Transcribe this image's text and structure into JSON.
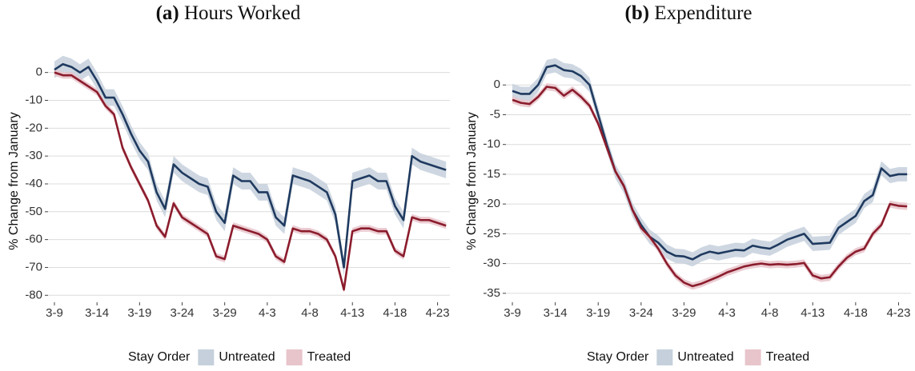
{
  "chart_data": [
    {
      "type": "line",
      "panel_label": "(a)",
      "title": "Hours Worked",
      "y_label": "% Change from January",
      "legend_title": "Stay Order",
      "categories": [
        "3-9",
        null,
        null,
        null,
        null,
        "3-14",
        null,
        null,
        null,
        null,
        "3-19",
        null,
        null,
        null,
        null,
        "3-24",
        null,
        null,
        null,
        null,
        "3-29",
        null,
        null,
        null,
        null,
        "4-3",
        null,
        null,
        null,
        null,
        "4-8",
        null,
        null,
        null,
        null,
        "4-13",
        null,
        null,
        null,
        null,
        "4-18",
        null,
        null,
        null,
        null,
        "4-23",
        null
      ],
      "ylim": [
        -82.5,
        4.5
      ],
      "yticks": [
        0,
        -10,
        -20,
        -30,
        -40,
        -50,
        -60,
        -70,
        -80
      ],
      "grid": true,
      "series": [
        {
          "name": "Untreated",
          "color": "#1f3a5f",
          "band_color": "#c5d0dc",
          "band": 3,
          "values": [
            1,
            3,
            2,
            0,
            2,
            -3,
            -9,
            -9,
            -15,
            -22,
            -28,
            -32,
            -43,
            -49,
            -33,
            -36,
            -38,
            -40,
            -41,
            -50,
            -54,
            -37,
            -39,
            -39,
            -43,
            -43,
            -52,
            -55,
            -37,
            -38,
            -39,
            -41,
            -43,
            -51,
            -70,
            -39,
            -38,
            -37,
            -39,
            -39,
            -48,
            -53,
            -30,
            -32,
            -33,
            -34,
            -35
          ]
        },
        {
          "name": "Treated",
          "color": "#8b1c2c",
          "band_color": "#e8c4cb",
          "band": 1.2,
          "values": [
            0,
            -1,
            -1,
            -3,
            -5,
            -7,
            -12,
            -15,
            -27,
            -34,
            -40,
            -46,
            -55,
            -59,
            -47,
            -52,
            -54,
            -56,
            -58,
            -66,
            -67,
            -55,
            -56,
            -57,
            -58,
            -60,
            -66,
            -68,
            -56,
            -57,
            -57,
            -58,
            -60,
            -66,
            -78,
            -57,
            -56,
            -56,
            -57,
            -57,
            -64,
            -66,
            -52,
            -53,
            -53,
            -54,
            -55
          ]
        }
      ]
    },
    {
      "type": "line",
      "panel_label": "(b)",
      "title": "Expenditure",
      "y_label": "% Change from January",
      "legend_title": "Stay Order",
      "categories": [
        "3-9",
        null,
        null,
        null,
        null,
        "3-14",
        null,
        null,
        null,
        null,
        "3-19",
        null,
        null,
        null,
        null,
        "3-24",
        null,
        null,
        null,
        null,
        "3-29",
        null,
        null,
        null,
        null,
        "4-3",
        null,
        null,
        null,
        null,
        "4-8",
        null,
        null,
        null,
        null,
        "4-13",
        null,
        null,
        null,
        null,
        "4-18",
        null,
        null,
        null,
        null,
        "4-23",
        null
      ],
      "ylim": [
        -36.5,
        4.2
      ],
      "yticks": [
        0,
        -5,
        -10,
        -15,
        -20,
        -25,
        -30,
        -35
      ],
      "grid": true,
      "series": [
        {
          "name": "Untreated",
          "color": "#1f3a5f",
          "band_color": "#c5d0dc",
          "band": 1.2,
          "values": [
            -1,
            -1.5,
            -1.5,
            0,
            3,
            3.3,
            2.5,
            2.3,
            1.5,
            0,
            -5,
            -10,
            -14.5,
            -17,
            -21,
            -23.5,
            -25.5,
            -26.5,
            -28,
            -28.7,
            -28.8,
            -29.3,
            -28.5,
            -28,
            -28.3,
            -28,
            -27.7,
            -27.8,
            -27,
            -27.3,
            -27.5,
            -26.8,
            -26,
            -25.5,
            -25,
            -26.7,
            -26.6,
            -26.5,
            -24,
            -23,
            -22,
            -19.5,
            -18.5,
            -14,
            -15.3,
            -15,
            -15
          ]
        },
        {
          "name": "Treated",
          "color": "#8b1c2c",
          "band_color": "#e8c4cb",
          "band": 0.6,
          "values": [
            -2.5,
            -3,
            -3.2,
            -2,
            -0.3,
            -0.5,
            -1.8,
            -0.8,
            -2,
            -3.5,
            -6.5,
            -10.5,
            -14.5,
            -17,
            -21,
            -24,
            -25.5,
            -27.5,
            -30,
            -32,
            -33.2,
            -33.8,
            -33.4,
            -32.8,
            -32.2,
            -31.5,
            -31,
            -30.5,
            -30.2,
            -30,
            -30.2,
            -30.1,
            -30.2,
            -30.1,
            -29.9,
            -32,
            -32.5,
            -32.3,
            -30.5,
            -29,
            -28,
            -27.5,
            -25,
            -23.5,
            -20,
            -20.3,
            -20.4
          ]
        }
      ]
    }
  ]
}
